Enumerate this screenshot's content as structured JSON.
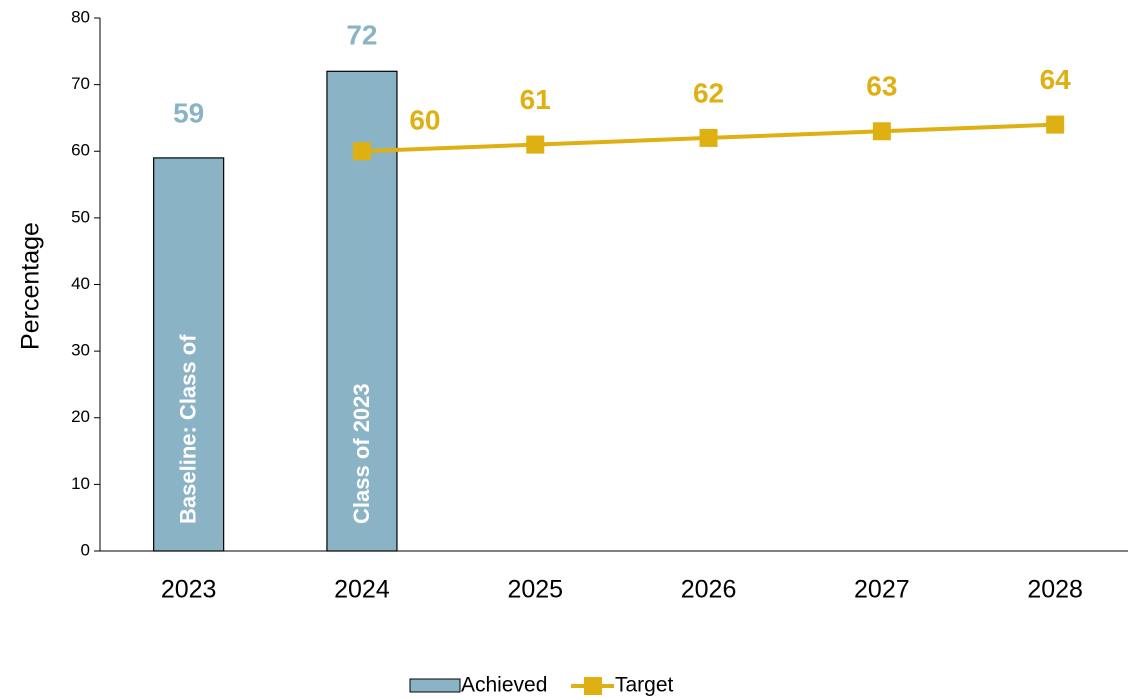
{
  "chart_data": {
    "type": "bar",
    "categories": [
      "2023",
      "2024",
      "2025",
      "2026",
      "2027",
      "2028"
    ],
    "y_label": "Percentage",
    "ylim": [
      0,
      80
    ],
    "yticks": [
      0,
      10,
      20,
      30,
      40,
      50,
      60,
      70,
      80
    ],
    "grid": false,
    "legend": "bottom",
    "series": [
      {
        "name": "Achieved",
        "type": "bar",
        "color": "#8ab4c6",
        "values": [
          59,
          72,
          null,
          null,
          null,
          null
        ],
        "inner_labels": [
          "Baseline: Class of",
          "Class of 2023",
          null,
          null,
          null,
          null
        ]
      },
      {
        "name": "Target",
        "type": "line",
        "color": "#dfb012",
        "values": [
          null,
          60,
          61,
          62,
          63,
          64
        ]
      }
    ]
  }
}
